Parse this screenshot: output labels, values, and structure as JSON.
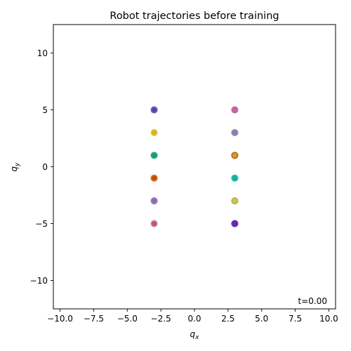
{
  "chart_data": {
    "type": "scatter",
    "title": "Robot trajectories before training",
    "xlabel": "q",
    "xlabel_sub": "x",
    "ylabel": "q",
    "ylabel_sub": "y",
    "xlim": [
      -10.5,
      10.5
    ],
    "ylim": [
      -12.5,
      12.5
    ],
    "xticks": [
      -10.0,
      -7.5,
      -5.0,
      -2.5,
      0.0,
      2.5,
      5.0,
      7.5,
      10.0
    ],
    "xtick_labels": [
      "−10.0",
      "−7.5",
      "−5.0",
      "−2.5",
      "0.0",
      "2.5",
      "5.0",
      "7.5",
      "10.0"
    ],
    "yticks": [
      -10,
      -5,
      0,
      5,
      10
    ],
    "ytick_labels": [
      "−10",
      "−5",
      "0",
      "5",
      "10"
    ],
    "grid": false,
    "annotation": "t=0.00",
    "points": [
      {
        "x": -3,
        "y": 5,
        "color": "#3b4fb8",
        "edge": "#8a5cb8"
      },
      {
        "x": -3,
        "y": 3,
        "color": "#d2b41c",
        "edge": "#e8c75a"
      },
      {
        "x": -3,
        "y": 1,
        "color": "#13a06e",
        "edge": "#2fb087"
      },
      {
        "x": -3,
        "y": -1,
        "color": "#c84a12",
        "edge": "#e07a1a"
      },
      {
        "x": -3,
        "y": -3,
        "color": "#8a6fae",
        "edge": "#9a7fbe"
      },
      {
        "x": -3,
        "y": -5,
        "color": "#b85a6e",
        "edge": "#d48aa0"
      },
      {
        "x": 3,
        "y": 5,
        "color": "#d65aa0",
        "edge": "#a87ab4"
      },
      {
        "x": 3,
        "y": 3,
        "color": "#8a7aa8",
        "edge": "#9c8cba"
      },
      {
        "x": 3,
        "y": 1,
        "color": "#d4a01c",
        "edge": "#b8621a"
      },
      {
        "x": 3,
        "y": -1,
        "color": "#17b0a0",
        "edge": "#2cc0b0"
      },
      {
        "x": 3,
        "y": -3,
        "color": "#c8c84a",
        "edge": "#b0b060"
      },
      {
        "x": 3,
        "y": -5,
        "color": "#8a1aa8",
        "edge": "#3a4ab8"
      }
    ]
  }
}
